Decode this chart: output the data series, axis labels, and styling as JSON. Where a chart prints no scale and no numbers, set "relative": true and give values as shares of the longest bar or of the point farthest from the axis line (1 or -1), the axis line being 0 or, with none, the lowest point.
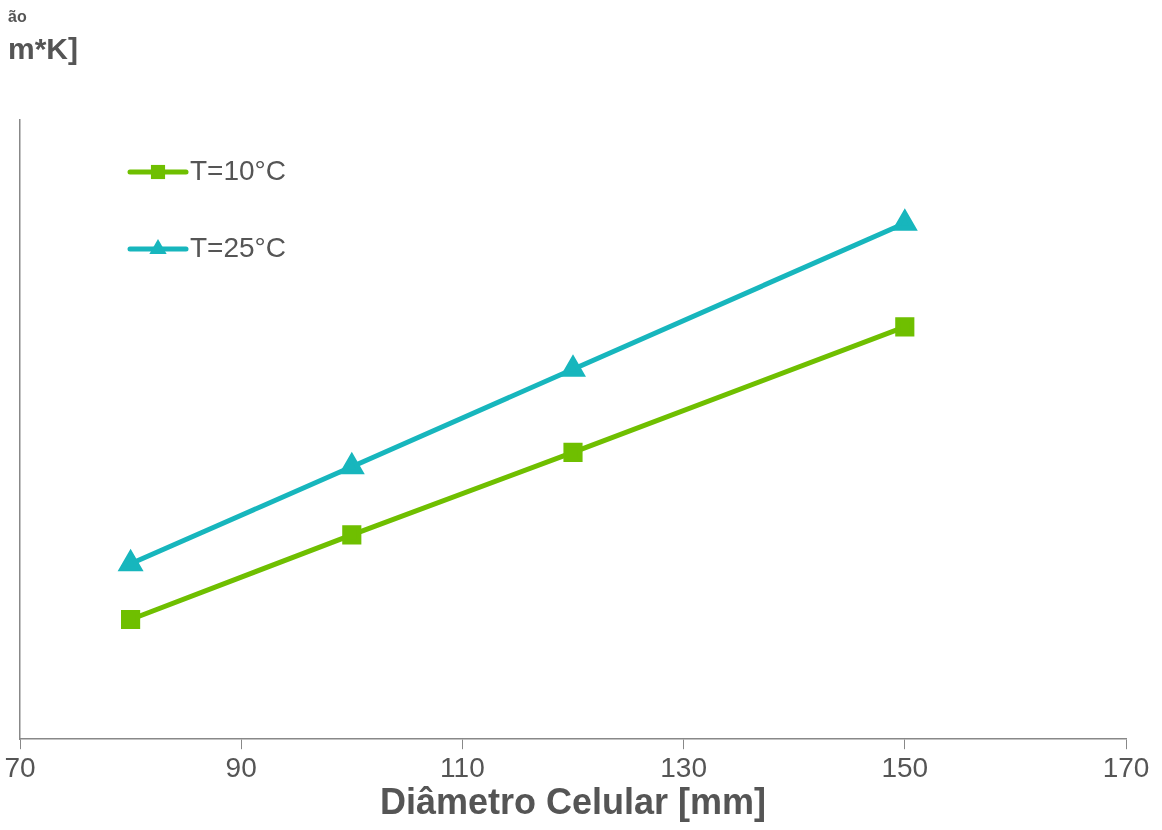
{
  "chart_data": {
    "type": "line",
    "relative": true,
    "xlabel": "Diâmetro Celular [mm]",
    "annotations": [
      "ão",
      "m*K]"
    ],
    "xlim": [
      70,
      170
    ],
    "xticks": [
      70,
      90,
      110,
      130,
      150,
      170
    ],
    "legend": "top left",
    "series": [
      {
        "name": "T=10°C",
        "color": "#6fbf00",
        "marker": "square",
        "x": [
          80,
          100,
          120,
          150
        ],
        "values": [
          0.232,
          0.396,
          0.556,
          0.799
        ]
      },
      {
        "name": "T=25°C",
        "color": "#17b6bd",
        "marker": "triangle",
        "x": [
          80,
          100,
          120,
          150
        ],
        "values": [
          0.34,
          0.528,
          0.717,
          1
        ]
      }
    ]
  }
}
